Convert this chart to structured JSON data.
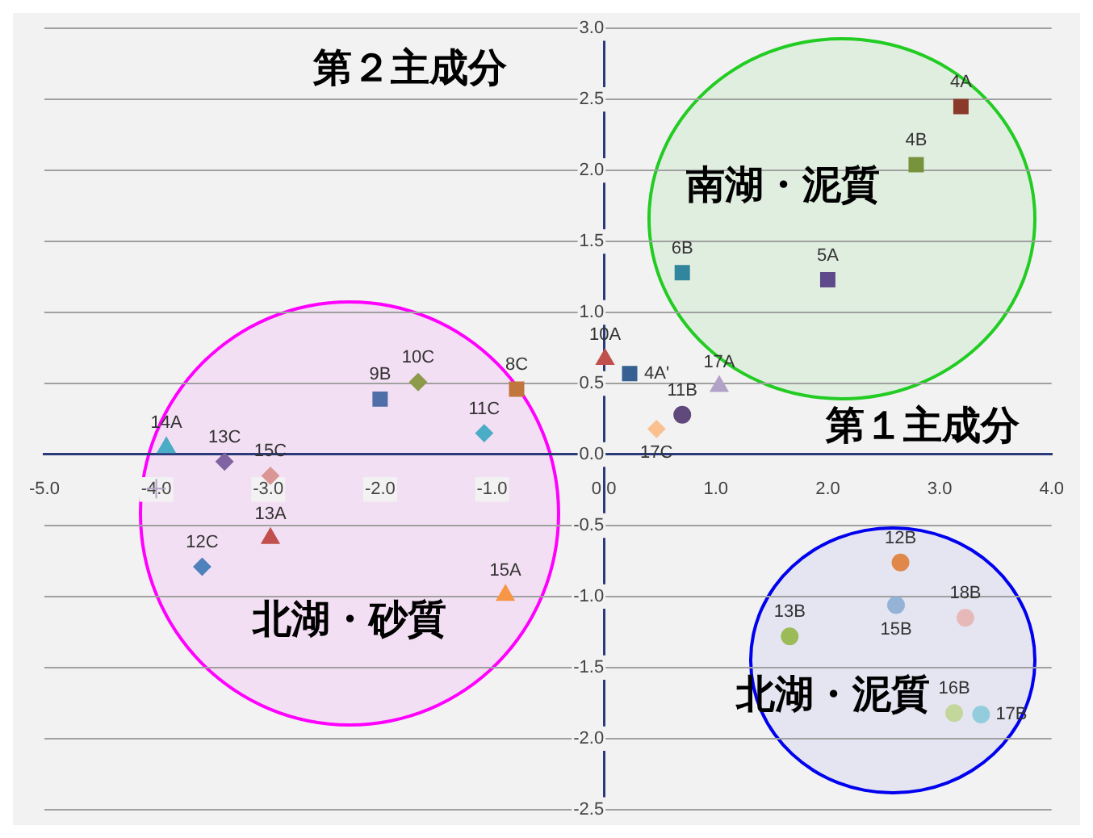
{
  "chart_data": {
    "type": "scatter",
    "xlabel": "第１主成分",
    "ylabel": "第２主成分",
    "xlim": [
      -5,
      4
    ],
    "xticks": [
      {
        "value": -5,
        "label": "-5.0"
      },
      {
        "value": -4,
        "label": "-4.0"
      },
      {
        "value": -3,
        "label": "-3.0"
      },
      {
        "value": -2,
        "label": "-2.0"
      },
      {
        "value": -1,
        "label": "-1.0"
      },
      {
        "value": 0,
        "label": "0.0"
      },
      {
        "value": 1,
        "label": "1.0"
      },
      {
        "value": 2,
        "label": "2.0"
      },
      {
        "value": 3,
        "label": "3.0"
      },
      {
        "value": 4,
        "label": "4.0"
      }
    ],
    "ylim": [
      -2.5,
      3
    ],
    "yticks": [
      {
        "value": -2.5,
        "label": "-2.5"
      },
      {
        "value": -2,
        "label": "-2.0"
      },
      {
        "value": -1.5,
        "label": "-1.5"
      },
      {
        "value": -1,
        "label": "-1.0"
      },
      {
        "value": -0.5,
        "label": "-0.5"
      },
      {
        "value": 0,
        "label": "0.0"
      },
      {
        "value": 0.5,
        "label": "0.5"
      },
      {
        "value": 1,
        "label": "1.0"
      },
      {
        "value": 1.5,
        "label": "1.5"
      },
      {
        "value": 2,
        "label": "2.0"
      },
      {
        "value": 2.5,
        "label": "2.5"
      },
      {
        "value": 3,
        "label": "3.0"
      }
    ],
    "grid": "y",
    "legend": false,
    "annotations": [
      "南湖・泥質",
      "北湖・砂質",
      "北湖・泥質"
    ],
    "series": [
      {
        "name": "4A",
        "color": "#8b3a2a",
        "marker": "square",
        "x": [
          3.19
        ],
        "values": [
          2.45
        ]
      },
      {
        "name": "4B",
        "color": "#77933c",
        "marker": "square",
        "x": [
          2.79
        ],
        "values": [
          2.04
        ]
      },
      {
        "name": "6B",
        "color": "#31859c",
        "marker": "square",
        "x": [
          0.7
        ],
        "values": [
          1.28
        ]
      },
      {
        "name": "5A",
        "color": "#5f4b8b",
        "marker": "square",
        "x": [
          2.0
        ],
        "values": [
          1.23
        ]
      },
      {
        "name": "10A",
        "color": "#c0504d",
        "marker": "triangle",
        "x": [
          0.01
        ],
        "values": [
          0.67
        ]
      },
      {
        "name": "4A'",
        "color": "#376092",
        "marker": "square",
        "x": [
          0.23
        ],
        "values": [
          0.57
        ]
      },
      {
        "name": "17A",
        "color": "#b3a2c7",
        "marker": "triangle",
        "x": [
          1.03
        ],
        "values": [
          0.48
        ]
      },
      {
        "name": "11B",
        "color": "#604a7b",
        "marker": "circle",
        "x": [
          0.7
        ],
        "values": [
          0.28
        ]
      },
      {
        "name": "17C",
        "color": "#fac090",
        "marker": "diamond",
        "x": [
          0.47
        ],
        "values": [
          0.18
        ]
      },
      {
        "name": "8C",
        "color": "#c0763c",
        "marker": "square",
        "x": [
          -0.78
        ],
        "values": [
          0.46
        ]
      },
      {
        "name": "10C",
        "color": "#8c9a4a",
        "marker": "diamond",
        "x": [
          -1.66
        ],
        "values": [
          0.51
        ]
      },
      {
        "name": "9B",
        "color": "#4f6fa8",
        "marker": "square",
        "x": [
          -2.0
        ],
        "values": [
          0.39
        ]
      },
      {
        "name": "11C",
        "color": "#4bacc6",
        "marker": "diamond",
        "x": [
          -1.07
        ],
        "values": [
          0.15
        ]
      },
      {
        "name": "14A",
        "color": "#4bacc6",
        "marker": "triangle",
        "x": [
          -3.91
        ],
        "values": [
          0.05
        ]
      },
      {
        "name": "13C",
        "color": "#8064a2",
        "marker": "diamond",
        "x": [
          -3.39
        ],
        "values": [
          -0.05
        ]
      },
      {
        "name": "15C",
        "color": "#d99694",
        "marker": "diamond",
        "x": [
          -2.98
        ],
        "values": [
          -0.15
        ]
      },
      {
        "name": "13A",
        "color": "#c0504d",
        "marker": "triangle",
        "x": [
          -2.98
        ],
        "values": [
          -0.59
        ]
      },
      {
        "name": "12C",
        "color": "#4f81bd",
        "marker": "diamond",
        "x": [
          -3.59
        ],
        "values": [
          -0.79
        ]
      },
      {
        "name": "15A",
        "color": "#f79646",
        "marker": "triangle",
        "x": [
          -0.88
        ],
        "values": [
          -0.99
        ]
      },
      {
        "name": "12B",
        "color": "#e0884a",
        "marker": "circle",
        "x": [
          2.65
        ],
        "values": [
          -0.76
        ]
      },
      {
        "name": "15B",
        "color": "#95b3d7",
        "marker": "circle",
        "x": [
          2.61
        ],
        "values": [
          -1.06
        ]
      },
      {
        "name": "18B",
        "color": "#e6b9b8",
        "marker": "circle",
        "x": [
          3.23
        ],
        "values": [
          -1.15
        ]
      },
      {
        "name": "13B",
        "color": "#9bbb59",
        "marker": "circle",
        "x": [
          1.66
        ],
        "values": [
          -1.28
        ]
      },
      {
        "name": "16B",
        "color": "#c3d69b",
        "marker": "circle",
        "x": [
          3.13
        ],
        "values": [
          -1.82
        ]
      },
      {
        "name": "17B",
        "color": "#93cddd",
        "marker": "circle",
        "x": [
          3.37
        ],
        "values": [
          -1.83
        ]
      },
      {
        "color": "#b3a2c7",
        "marker": "cross",
        "x": [
          -4.0
        ],
        "values": [
          -0.24
        ]
      }
    ]
  }
}
